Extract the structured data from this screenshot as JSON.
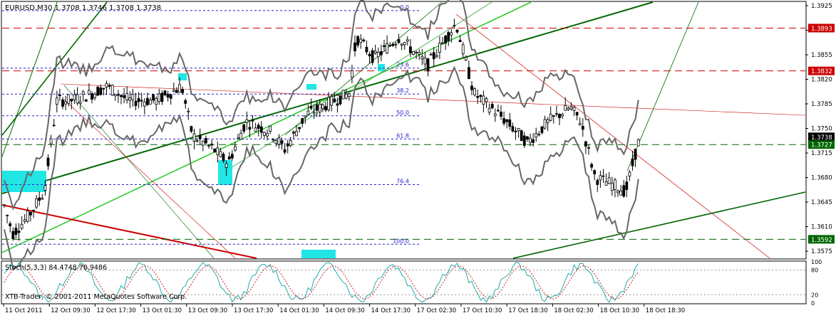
{
  "chart_data": {
    "type": "candlestick",
    "symbol_header": "EURUSD,M30  1.3708 1.3746 1.3708 1.3738",
    "ohlc_last": {
      "open": 1.3708,
      "high": 1.3746,
      "low": 1.3708,
      "close": 1.3738
    },
    "y_axis_ticks": [
      "1.3925",
      "1.3890",
      "1.3855",
      "1.3820",
      "1.3785",
      "1.3750",
      "1.3715",
      "1.3680",
      "1.3645",
      "1.3610",
      "1.3575"
    ],
    "y_range": [
      1.3565,
      1.393
    ],
    "price_markers": [
      {
        "label": "1.3893",
        "value": 1.3893,
        "color": "#cc0000",
        "text_color": "#ffffff"
      },
      {
        "label": "1.3832",
        "value": 1.3832,
        "color": "#cc0000",
        "text_color": "#ffffff"
      },
      {
        "label": "1.3738",
        "value": 1.3738,
        "color": "#000000",
        "text_color": "#ffffff"
      },
      {
        "label": "1.3727",
        "value": 1.3727,
        "color": "#006600",
        "text_color": "#ffffff"
      },
      {
        "label": "1.3592",
        "value": 1.3592,
        "color": "#006600",
        "text_color": "#ffffff"
      }
    ],
    "fibonacci_levels": [
      "0.0",
      "23.6",
      "38.2",
      "50.0",
      "61.8",
      "76.4",
      "100.0"
    ],
    "x_tick_labels": [
      "11 Oct 2011",
      "12 Oct 09:30",
      "12 Oct 17:30",
      "13 Oct 01:30",
      "13 Oct 09:30",
      "13 Oct 17:30",
      "14 Oct 01:30",
      "14 Oct 09:30",
      "14 Oct 17:30",
      "17 Oct 02:30",
      "17 Oct 10:30",
      "17 Oct 18:30",
      "18 Oct 02:30",
      "18 Oct 10:30",
      "18 Oct 18:30"
    ],
    "oscillator": {
      "label": "Stoch(5,3,3) 84.4748 70.9486",
      "ticks": [
        "100",
        "80",
        "20",
        "0"
      ]
    },
    "grid": false,
    "background": "#ffffff",
    "candle_color": "#000000"
  },
  "copyright": "XTB-Trader, © 2001-2011 MetaQuotes Software Corp."
}
